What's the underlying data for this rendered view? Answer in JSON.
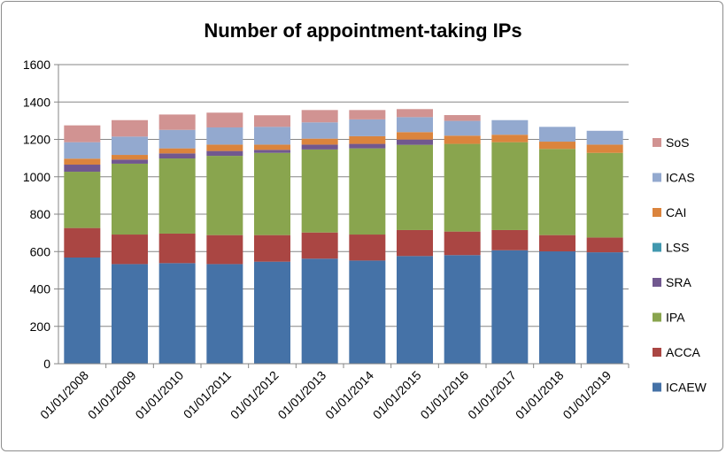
{
  "chart_data": {
    "type": "bar",
    "stacked": true,
    "title": "Number of appointment-taking IPs",
    "xlabel": "",
    "ylabel": "",
    "ylim": [
      0,
      1600
    ],
    "yticks": [
      0,
      200,
      400,
      600,
      800,
      1000,
      1200,
      1400,
      1600
    ],
    "grid": true,
    "legend_position": "right",
    "categories": [
      "01/01/2008",
      "01/01/2009",
      "01/01/2010",
      "01/01/2011",
      "01/01/2012",
      "01/01/2013",
      "01/01/2014",
      "01/01/2015",
      "01/01/2016",
      "01/01/2017",
      "01/01/2018",
      "01/01/2019"
    ],
    "series": [
      {
        "name": "ICAEW",
        "color": "#4572a7",
        "values": [
          568,
          533,
          538,
          533,
          546,
          562,
          552,
          576,
          581,
          607,
          601,
          596
        ]
      },
      {
        "name": "ACCA",
        "color": "#aa4643",
        "values": [
          158,
          158,
          158,
          155,
          142,
          140,
          139,
          139,
          126,
          108,
          87,
          79
        ]
      },
      {
        "name": "IPA",
        "color": "#89a54e",
        "values": [
          301,
          379,
          402,
          424,
          440,
          444,
          461,
          456,
          469,
          470,
          461,
          453
        ]
      },
      {
        "name": "SRA",
        "color": "#71588f",
        "values": [
          38,
          22,
          27,
          26,
          16,
          26,
          24,
          28,
          0,
          0,
          0,
          0
        ]
      },
      {
        "name": "LSS",
        "color": "#4198af",
        "values": [
          0,
          0,
          0,
          0,
          0,
          0,
          0,
          0,
          0,
          0,
          0,
          0
        ]
      },
      {
        "name": "CAI",
        "color": "#db843d",
        "values": [
          32,
          25,
          27,
          34,
          28,
          32,
          41,
          40,
          44,
          40,
          39,
          44
        ]
      },
      {
        "name": "ICAS",
        "color": "#93a9cf",
        "values": [
          88,
          98,
          99,
          92,
          95,
          87,
          90,
          80,
          79,
          78,
          79,
          74
        ]
      },
      {
        "name": "SoS",
        "color": "#d19392",
        "values": [
          90,
          88,
          82,
          79,
          62,
          66,
          50,
          43,
          31,
          0,
          0,
          0
        ]
      }
    ]
  }
}
